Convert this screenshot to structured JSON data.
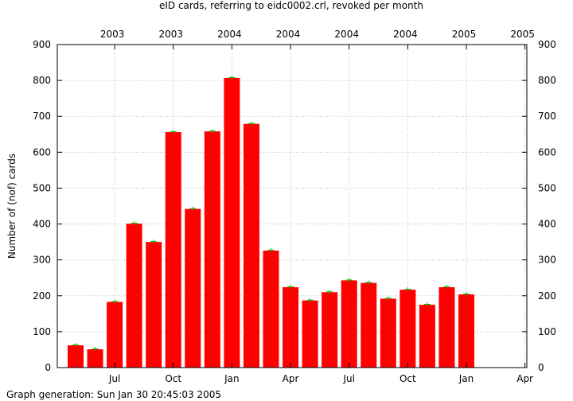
{
  "chart_data": {
    "type": "bar",
    "title": "eID cards, referring to eidc0002.crl, revoked per month",
    "ylabel": "Number of (nof) cards",
    "footer": "Graph generation: Sun Jan 30 20:45:03 2005",
    "ylim": [
      0,
      900
    ],
    "yticks": [
      0,
      100,
      200,
      300,
      400,
      500,
      600,
      700,
      800,
      900
    ],
    "grid": true,
    "bar_color": "#ff0000",
    "errorbar_color": "#00bb00",
    "axis_color": "#000000",
    "grid_color": "#b0b0b0",
    "categories": [
      "2003-05",
      "2003-06",
      "2003-07",
      "2003-08",
      "2003-09",
      "2003-10",
      "2003-11",
      "2003-12",
      "2004-01",
      "2004-02",
      "2004-03",
      "2004-04",
      "2004-05",
      "2004-06",
      "2004-07",
      "2004-08",
      "2004-09",
      "2004-10",
      "2004-11",
      "2004-12",
      "2005-01"
    ],
    "values": [
      62,
      51,
      183,
      401,
      350,
      656,
      442,
      658,
      807,
      679,
      326,
      224,
      187,
      210,
      243,
      236,
      192,
      217,
      175,
      224,
      204
    ],
    "x_month_ticks": [
      "Jul",
      "Oct",
      "Jan",
      "Apr",
      "Jul",
      "Oct",
      "Jan",
      "Apr"
    ],
    "x_year_ticks": [
      "2003",
      "2003",
      "2004",
      "2004",
      "2004",
      "2004",
      "2005",
      "2005"
    ]
  }
}
